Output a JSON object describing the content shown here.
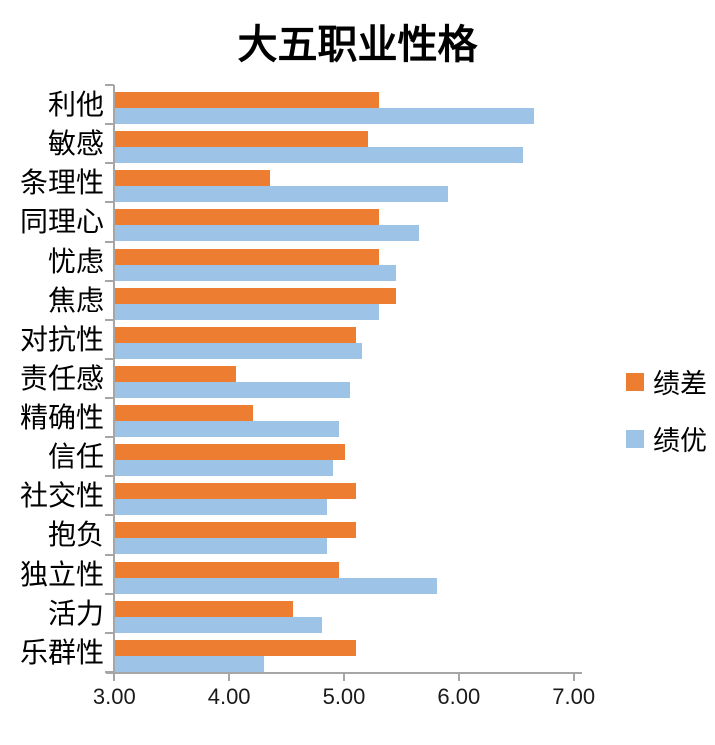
{
  "title": "大五职业性格",
  "chart_data": {
    "type": "bar",
    "orientation": "horizontal",
    "title": "大五职业性格",
    "categories": [
      "利他",
      "敏感",
      "条理性",
      "同理心",
      "忧虑",
      "焦虑",
      "对抗性",
      "责任感",
      "精确性",
      "信任",
      "社交性",
      "抱负",
      "独立性",
      "活力",
      "乐群性"
    ],
    "series": [
      {
        "name": "绩差",
        "color": "#ED7D31",
        "values": [
          5.3,
          5.2,
          4.35,
          5.3,
          5.3,
          5.45,
          5.1,
          4.05,
          4.2,
          5.0,
          5.1,
          5.1,
          4.95,
          4.55,
          5.1
        ]
      },
      {
        "name": "绩优",
        "color": "#9DC3E6",
        "values": [
          6.65,
          6.55,
          5.9,
          5.65,
          5.45,
          5.3,
          5.15,
          5.05,
          4.95,
          4.9,
          4.85,
          4.85,
          5.8,
          4.8,
          4.3
        ]
      }
    ],
    "xlim": [
      3,
      7
    ],
    "x_ticks": [
      3,
      4,
      5,
      6,
      7
    ],
    "x_tick_labels": [
      "3.00",
      "4.00",
      "5.00",
      "6.00",
      "7.00"
    ],
    "grid": false,
    "legend_position": "middle-right",
    "axis_color": "#A6A6A6",
    "text_color": "#000000",
    "background": "#FFFFFF"
  }
}
